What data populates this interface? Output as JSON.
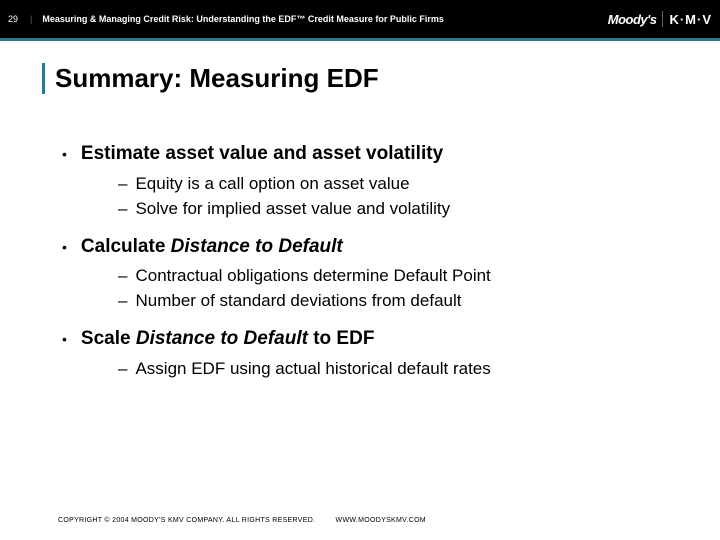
{
  "header": {
    "page_number": "29",
    "title": "Measuring & Managing Credit Risk: Understanding the EDF™ Credit Measure for Public Firms",
    "logo_moodys": "Moody's",
    "logo_kmv": "K·M·V"
  },
  "slide_title": "Summary: Measuring EDF",
  "bullets": [
    {
      "text": "Estimate asset value and asset volatility",
      "italic_part": "",
      "sub": [
        "Equity is a call option on asset value",
        "Solve for implied asset value and volatility"
      ]
    },
    {
      "prefix": "Calculate ",
      "italic_part": "Distance to Default",
      "suffix": "",
      "sub": [
        "Contractual obligations determine Default Point",
        "Number of standard deviations from default"
      ]
    },
    {
      "prefix": "Scale ",
      "italic_part": "Distance to Default",
      "suffix": " to EDF",
      "sub": [
        "Assign EDF using actual historical default rates"
      ]
    }
  ],
  "footer": {
    "copyright": "COPYRIGHT © 2004 MOODY'S KMV COMPANY. ALL RIGHTS RESERVED.",
    "url": "WWW.MOODYSKMV.COM"
  },
  "colors": {
    "header_bg": "#000000",
    "teal": "#2a7a8c",
    "text": "#000000"
  }
}
